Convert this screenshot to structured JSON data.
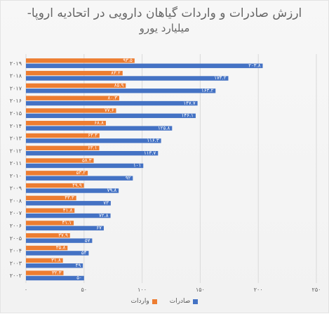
{
  "chart_data": {
    "type": "bar",
    "orientation": "horizontal",
    "title_line1": "ارزش صادرات   و واردات گیاهان دارویی در اتحادیه اروپا-",
    "title_line2": "میلیارد یورو",
    "categories": [
      "۲۰۰۲",
      "۲۰۰۳",
      "۲۰۰۴",
      "۲۰۰۵",
      "۲۰۰۶",
      "۲۰۰۷",
      "۲۰۰۸",
      "۲۰۰۹",
      "۲۰۱۰",
      "۲۰۱۱",
      "۲۰۱۲",
      "۲۰۱۳",
      "۲۰۱۴",
      "۲۰۱۵",
      "۲۰۱۶",
      "۲۰۱۷",
      "۲۰۱۸",
      "۲۰۱۹"
    ],
    "series": [
      {
        "name": "صادرات",
        "color": "#4472C4",
        "values": [
          50,
          49,
          54,
          57,
          67,
          72.8,
          73,
          79.8,
          92,
          101,
          113.7,
          116.3,
          125.8,
          146.1,
          147.7,
          163.2,
          174.2,
          203.8
        ],
        "labels": [
          "۵۰",
          "۴۹",
          "۵۴",
          "۵۷",
          "۶۷",
          "۷۲.۸",
          "۷۳",
          "۷۹.۸",
          "۹۲",
          "۱۰۱",
          "۱۱۳.۷",
          "۱۱۶.۳",
          "۱۲۵.۸",
          "۱۴۶.۱",
          "۱۴۷.۷",
          "۱۶۳.۲",
          "۱۷۴.۲",
          "۲۰۳.۸"
        ]
      },
      {
        "name": "واردات",
        "color": "#ED7D31",
        "values": [
          32.3,
          31.8,
          35.8,
          37.9,
          41.1,
          41.8,
          43.3,
          49.9,
          53.2,
          58.3,
          63.1,
          63.3,
          68.8,
          77.6,
          80.3,
          85.9,
          83.2,
          93.5
        ],
        "labels": [
          "۳۲.۳",
          "۳۱.۸",
          "۳۵.۸",
          "۳۷.۹",
          "۴۱.۱",
          "۴۱.۸",
          "۴۳.۳",
          "۴۹.۹",
          "۵۳.۲",
          "۵۸.۳",
          "۶۳.۱",
          "۶۳.۳",
          "۶۸.۸",
          "۷۷.۶",
          "۸۰.۳",
          "۸۵.۹",
          "۸۳.۲",
          "۹۳.۵"
        ]
      }
    ],
    "x_ticks": [
      0,
      50,
      100,
      150,
      200,
      250
    ],
    "x_tick_labels": [
      "۰",
      "۵۰",
      "۱۰۰",
      "۱۵۰",
      "۲۰۰",
      "۲۵۰"
    ],
    "xlim": [
      0,
      250
    ],
    "grid": true,
    "legend": "bottom"
  }
}
